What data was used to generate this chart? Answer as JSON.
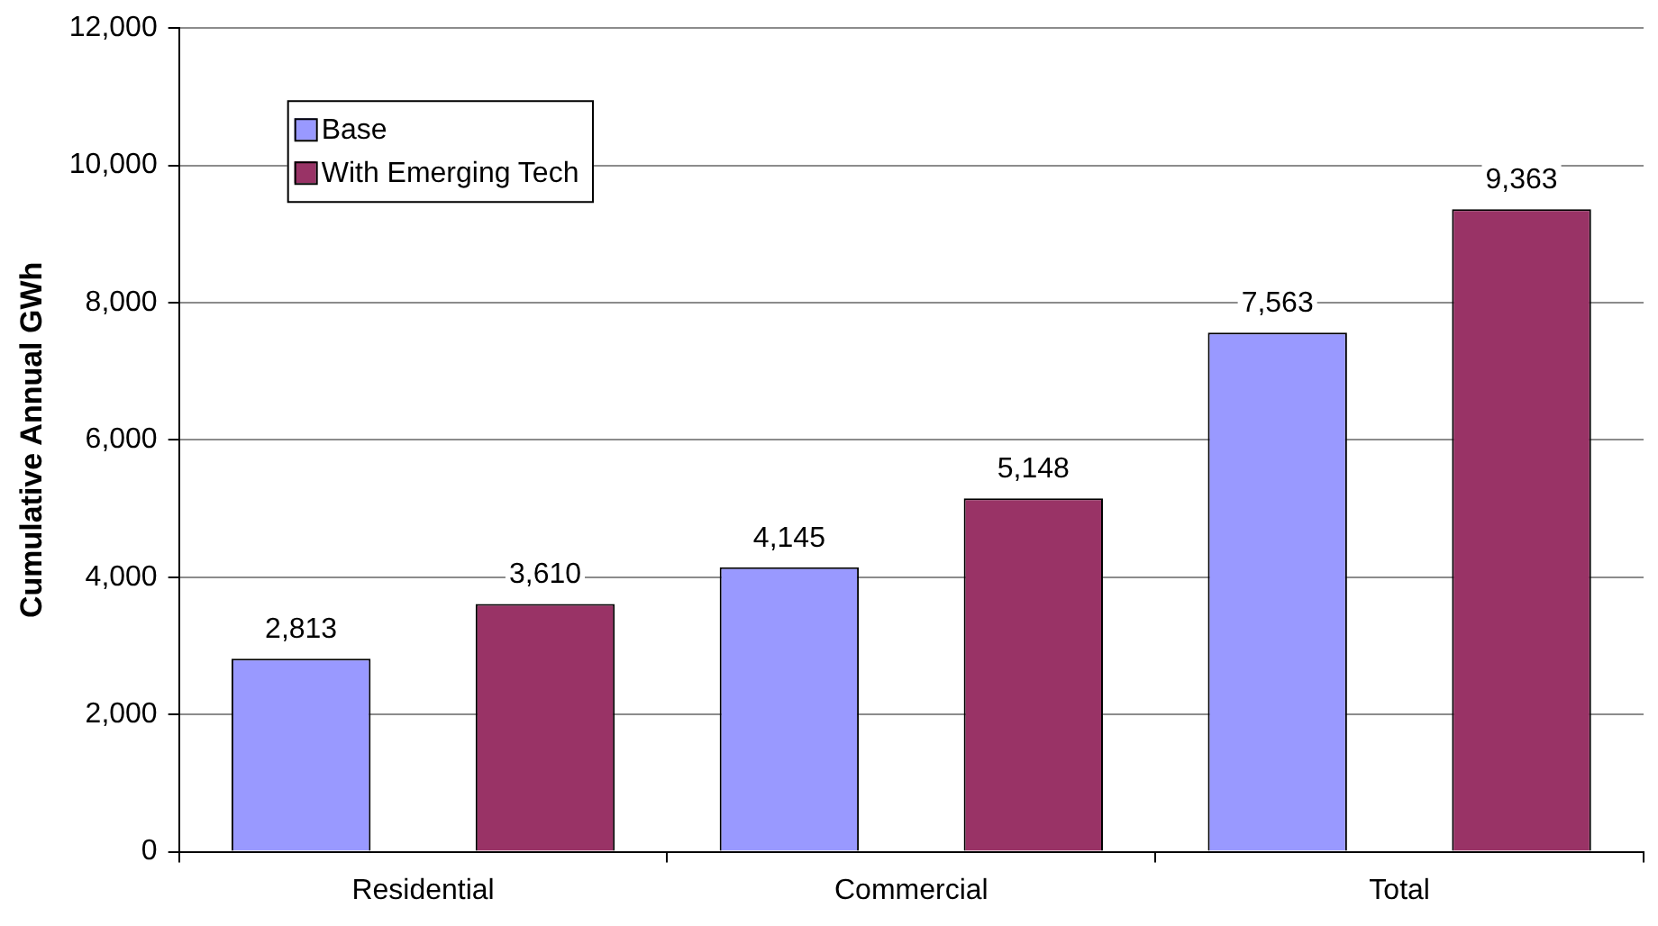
{
  "chart_data": {
    "type": "bar",
    "ylabel": "Cumulative Annual GWh",
    "categories": [
      "Residential",
      "Commercial",
      "Total"
    ],
    "series": [
      {
        "name": "Base",
        "color": "#9999ff",
        "values": [
          2813,
          4145,
          7563
        ]
      },
      {
        "name": "With Emerging Tech",
        "color": "#993366",
        "values": [
          3610,
          5148,
          9363
        ]
      }
    ],
    "ylim": [
      0,
      12000
    ],
    "yticks": [
      {
        "value": 0,
        "label": "0"
      },
      {
        "value": 2000,
        "label": "2,000"
      },
      {
        "value": 4000,
        "label": "4,000"
      },
      {
        "value": 6000,
        "label": "6,000"
      },
      {
        "value": 8000,
        "label": "8,000"
      },
      {
        "value": 10000,
        "label": "10,000"
      },
      {
        "value": 12000,
        "label": "12,000"
      }
    ],
    "grid": "y",
    "legend": "top left",
    "value_labels": [
      [
        "2,813",
        "4,145",
        "7,563"
      ],
      [
        "3,610",
        "5,148",
        "9,363"
      ]
    ]
  }
}
